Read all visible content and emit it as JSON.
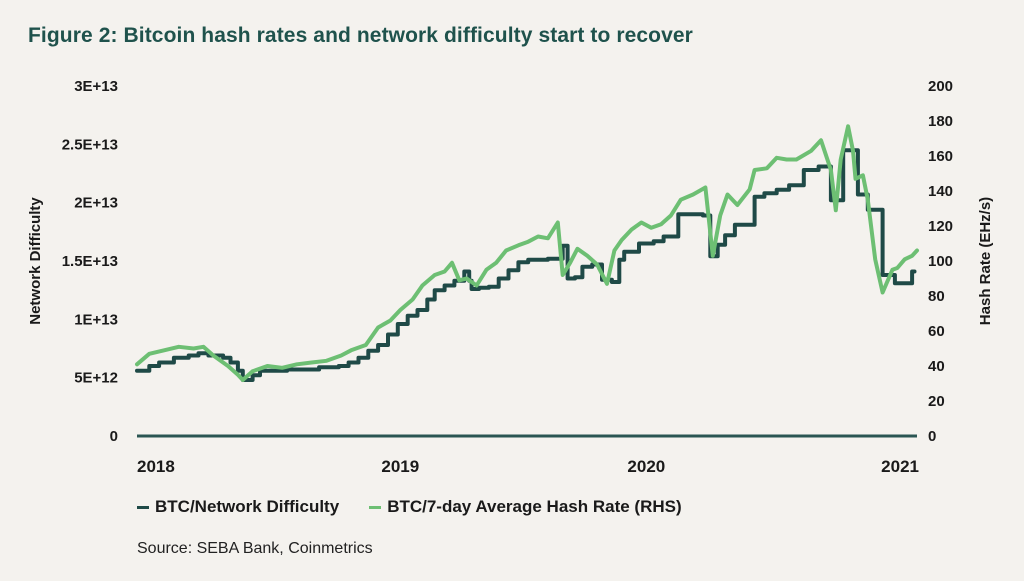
{
  "title": "Figure 2: Bitcoin hash rates and network difficulty start to recover",
  "source": "Source: SEBA Bank, Coinmetrics",
  "colors": {
    "difficulty": "#1f4a47",
    "hashrate": "#6dbf73",
    "axis": "#2a5552"
  },
  "chart_data": {
    "type": "line",
    "title": "Figure 2: Bitcoin hash rates and network difficulty start to recover",
    "xlabel": "",
    "ylabel": "Network Difficulty",
    "y2label": "Hash Rate (EHz/s)",
    "xlim": [
      2017.93,
      2021.1
    ],
    "ylim": [
      0,
      30000000000000.0
    ],
    "y2lim": [
      0,
      200
    ],
    "x_ticks": [
      2018,
      2019,
      2020,
      2021
    ],
    "x_tick_labels": [
      "2018",
      "2019",
      "2020",
      "2021"
    ],
    "y_ticks": [
      0,
      5000000000000.0,
      10000000000000.0,
      15000000000000.0,
      20000000000000.0,
      25000000000000.0,
      30000000000000.0
    ],
    "y_tick_labels": [
      "0",
      "5E+12",
      "1E+13",
      "1.5E+13",
      "2E+13",
      "2.5E+13",
      "3E+13"
    ],
    "y2_ticks": [
      0,
      20,
      40,
      60,
      80,
      100,
      120,
      140,
      160,
      180,
      200
    ],
    "y2_tick_labels": [
      "0",
      "20",
      "40",
      "60",
      "80",
      "100",
      "120",
      "140",
      "160",
      "180",
      "200"
    ],
    "grid": false,
    "legend_position": "bottom-left",
    "series": [
      {
        "name": "BTC/Network Difficulty",
        "axis": "left",
        "style": "step",
        "unit": "E12",
        "x": [
          2017.93,
          2017.98,
          2018.02,
          2018.08,
          2018.14,
          2018.18,
          2018.22,
          2018.28,
          2018.31,
          2018.34,
          2018.36,
          2018.4,
          2018.43,
          2018.48,
          2018.54,
          2018.67,
          2018.75,
          2018.79,
          2018.83,
          2018.87,
          2018.91,
          2018.95,
          2018.99,
          2019.03,
          2019.07,
          2019.11,
          2019.14,
          2019.18,
          2019.22,
          2019.26,
          2019.28,
          2019.29,
          2019.32,
          2019.36,
          2019.4,
          2019.44,
          2019.48,
          2019.52,
          2019.6,
          2019.66,
          2019.68,
          2019.71,
          2019.74,
          2019.78,
          2019.82,
          2019.86,
          2019.89,
          2019.91,
          2019.97,
          2020.03,
          2020.07,
          2020.13,
          2020.17,
          2020.23,
          2020.26,
          2020.29,
          2020.32,
          2020.36,
          2020.4,
          2020.44,
          2020.48,
          2020.53,
          2020.58,
          2020.64,
          2020.7,
          2020.75,
          2020.8,
          2020.83,
          2020.86,
          2020.9,
          2020.92,
          2020.96,
          2021.01,
          2021.02,
          2021.05,
          2021.08,
          2021.09
        ],
        "values": [
          5.6,
          6.0,
          6.3,
          6.7,
          6.9,
          7.1,
          6.9,
          6.7,
          6.3,
          5.6,
          4.8,
          5.2,
          5.6,
          5.6,
          5.7,
          5.9,
          6.0,
          6.3,
          6.7,
          7.3,
          7.8,
          8.7,
          9.6,
          10.3,
          10.8,
          11.7,
          12.5,
          12.9,
          13.3,
          14.1,
          13.3,
          12.6,
          12.7,
          12.8,
          13.5,
          14.2,
          14.9,
          15.1,
          15.2,
          16.3,
          13.5,
          13.6,
          14.5,
          14.7,
          13.4,
          13.2,
          15.1,
          15.8,
          16.5,
          16.7,
          17.1,
          19.0,
          19.0,
          18.9,
          15.4,
          16.4,
          17.2,
          18.1,
          18.1,
          20.5,
          20.8,
          21.1,
          21.5,
          22.8,
          23.1,
          20.2,
          24.5,
          24.5,
          20.7,
          19.4,
          19.4,
          13.8,
          13.1,
          13.1,
          13.1,
          14.1,
          14.1
        ]
      },
      {
        "name": "BTC/7-day Average Hash Rate (RHS)",
        "axis": "right",
        "style": "line",
        "unit": "EH/s",
        "x": [
          2017.93,
          2017.98,
          2018.04,
          2018.1,
          2018.16,
          2018.2,
          2018.24,
          2018.3,
          2018.34,
          2018.36,
          2018.4,
          2018.46,
          2018.52,
          2018.58,
          2018.64,
          2018.7,
          2018.76,
          2018.8,
          2018.86,
          2018.91,
          2018.96,
          2019.0,
          2019.05,
          2019.09,
          2019.14,
          2019.18,
          2019.21,
          2019.24,
          2019.27,
          2019.31,
          2019.35,
          2019.39,
          2019.43,
          2019.48,
          2019.52,
          2019.56,
          2019.6,
          2019.64,
          2019.66,
          2019.69,
          2019.72,
          2019.76,
          2019.8,
          2019.84,
          2019.87,
          2019.9,
          2019.94,
          2019.98,
          2020.02,
          2020.06,
          2020.1,
          2020.14,
          2020.19,
          2020.24,
          2020.27,
          2020.3,
          2020.33,
          2020.37,
          2020.42,
          2020.44,
          2020.49,
          2020.53,
          2020.57,
          2020.61,
          2020.67,
          2020.71,
          2020.75,
          2020.77,
          2020.79,
          2020.82,
          2020.84,
          2020.85,
          2020.88,
          2020.9,
          2020.93,
          2020.96,
          2021.0,
          2021.02,
          2021.05,
          2021.08,
          2021.1
        ],
        "values": [
          41,
          47,
          49,
          51,
          50,
          51,
          46,
          40,
          35,
          32,
          37,
          40,
          39,
          41,
          42,
          43,
          46,
          49,
          52,
          62,
          66,
          72,
          78,
          86,
          92,
          94,
          99,
          89,
          90,
          86,
          95,
          99,
          106,
          109,
          111,
          114,
          113,
          122,
          92,
          99,
          107,
          103,
          98,
          87,
          106,
          112,
          118,
          122,
          119,
          121,
          126,
          135,
          138,
          142,
          103,
          126,
          138,
          132,
          141,
          152,
          153,
          159,
          158,
          158,
          163,
          169,
          152,
          129,
          158,
          177,
          163,
          147,
          149,
          135,
          101,
          82,
          95,
          96,
          101,
          103,
          106
        ]
      }
    ]
  }
}
